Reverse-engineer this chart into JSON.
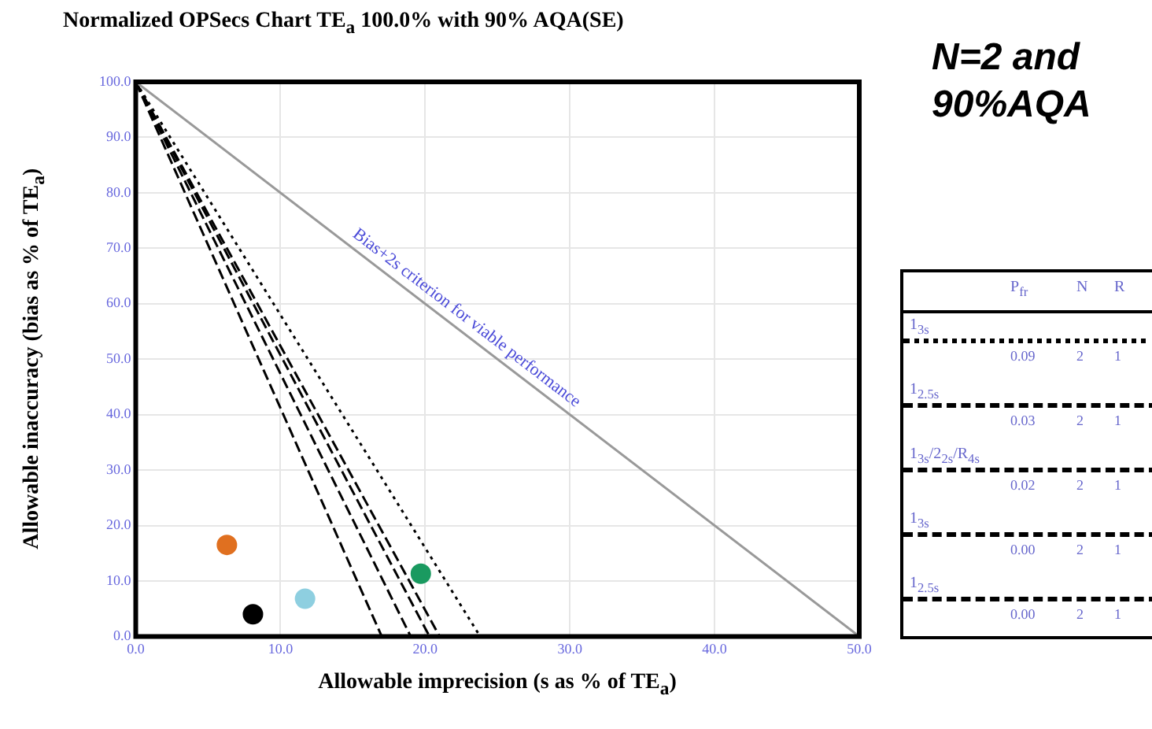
{
  "chart_data": {
    "type": "line",
    "title": "Normalized OPSecs Chart TE$_{a}$ 100.0% with 90% AQA(SE)",
    "xlabel": "Allowable imprecision (s as % of TE$_{a}$)",
    "ylabel": "Allowable inaccuracy (bias as % of TE$_{a}$)",
    "xlim": [
      0,
      50
    ],
    "ylim": [
      0,
      100
    ],
    "xticks": [
      {
        "value": 0,
        "label": "0.0"
      },
      {
        "value": 10,
        "label": "10.0"
      },
      {
        "value": 20,
        "label": "20.0"
      },
      {
        "value": 30,
        "label": "30.0"
      },
      {
        "value": 40,
        "label": "40.0"
      },
      {
        "value": 50,
        "label": "50.0"
      }
    ],
    "yticks": [
      {
        "value": 0,
        "label": "0.0"
      },
      {
        "value": 10,
        "label": "10.0"
      },
      {
        "value": 20,
        "label": "20.0"
      },
      {
        "value": 30,
        "label": "30.0"
      },
      {
        "value": 40,
        "label": "40.0"
      },
      {
        "value": 50,
        "label": "50.0"
      },
      {
        "value": 60,
        "label": "60.0"
      },
      {
        "value": 70,
        "label": "70.0"
      },
      {
        "value": 80,
        "label": "80.0"
      },
      {
        "value": 90,
        "label": "90.0"
      },
      {
        "value": 100,
        "label": "100.0"
      }
    ],
    "grid": true,
    "legend": "right",
    "series": [
      {
        "type": "line",
        "color": "#999999",
        "x": [
          0,
          50
        ],
        "values": [
          100,
          0
        ],
        "line_style": "solid"
      },
      {
        "type": "line",
        "name": "1$_{3s}$",
        "color": "#000000",
        "x": [
          0,
          23.8
        ],
        "values": [
          100,
          0
        ],
        "line_style": "dotted"
      },
      {
        "type": "line",
        "name": "1$_{2.5s}$",
        "color": "#000000",
        "x": [
          0,
          21.0
        ],
        "values": [
          100,
          0
        ],
        "line_style": "dashed"
      },
      {
        "type": "line",
        "name": "1$_{3s}$/2$_{2s}$/R$_{4s}$",
        "color": "#000000",
        "x": [
          0,
          20.3
        ],
        "values": [
          100,
          0
        ],
        "line_style": "dashed"
      },
      {
        "type": "line",
        "name": "1$_{3s}$",
        "color": "#000000",
        "x": [
          0,
          19.0
        ],
        "values": [
          100,
          0
        ],
        "line_style": "dashed"
      },
      {
        "type": "line",
        "name": "1$_{2.5s}$",
        "color": "#000000",
        "x": [
          0,
          17.0
        ],
        "values": [
          100,
          0
        ],
        "line_style": "dashed"
      },
      {
        "type": "scatter",
        "x": [
          6.3,
          8.1,
          11.7,
          19.7
        ],
        "values": [
          16.5,
          4,
          6.8,
          11.3
        ],
        "colors": [
          "#e07020",
          "#000000",
          "#8ecfe0",
          "#1a9a60"
        ],
        "marker": "circle"
      }
    ],
    "annotations": [
      "N=2 and 90%AQA",
      "Bias+2s criterion for viable performance",
      "P$_{fr}$",
      "N",
      "R",
      "0.09",
      "2",
      "1",
      "0.03",
      "2",
      "1",
      "0.02",
      "2",
      "1",
      "0.00",
      "2",
      "1",
      "0.00",
      "2",
      "1"
    ]
  }
}
